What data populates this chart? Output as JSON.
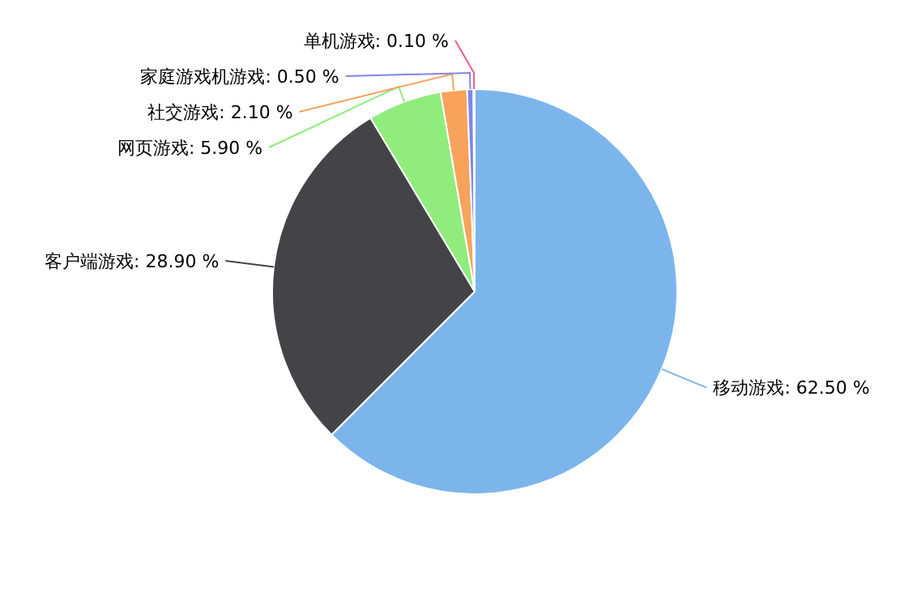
{
  "chart_data": {
    "type": "pie",
    "categories": [
      "移动游戏",
      "客户端游戏",
      "网页游戏",
      "社交游戏",
      "家庭游戏机游戏",
      "单机游戏"
    ],
    "values": [
      62.5,
      28.9,
      5.9,
      2.1,
      0.5,
      0.1
    ],
    "value_labels": [
      "62.50 %",
      "28.90 %",
      "5.90 %",
      "2.10 %",
      "0.50 %",
      "0.10 %"
    ],
    "colors": [
      "#7cb5ec",
      "#434348",
      "#90ed7d",
      "#f7a35c",
      "#8085e9",
      "#f15c80"
    ]
  }
}
